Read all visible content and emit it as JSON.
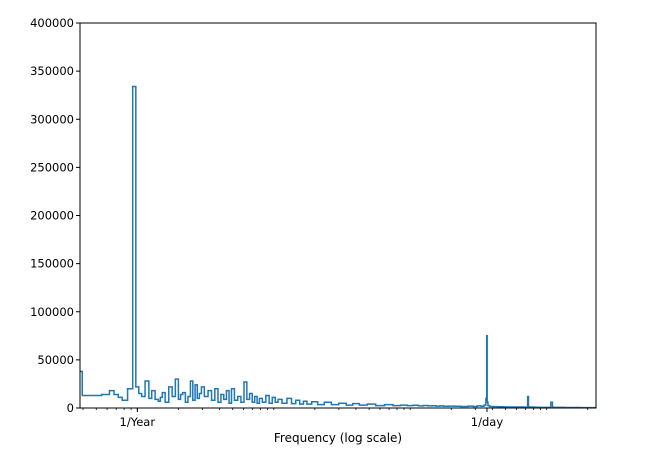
{
  "chart_data": {
    "type": "line",
    "title": "",
    "xlabel": "Frequency (log scale)",
    "ylabel": "",
    "x_scale": "log",
    "x_unit": "cycles per year",
    "xlim": [
      0.38,
      2300
    ],
    "ylim": [
      0,
      400000
    ],
    "grid": false,
    "legend": "none",
    "drawstyle": "steps-mid",
    "line_color": "#1f77b4",
    "y_ticks": [
      {
        "value": 0,
        "label": "0"
      },
      {
        "value": 50000,
        "label": "50000"
      },
      {
        "value": 100000,
        "label": "100000"
      },
      {
        "value": 150000,
        "label": "150000"
      },
      {
        "value": 200000,
        "label": "200000"
      },
      {
        "value": 250000,
        "label": "250000"
      },
      {
        "value": 300000,
        "label": "300000"
      },
      {
        "value": 350000,
        "label": "350000"
      },
      {
        "value": 400000,
        "label": "400000"
      }
    ],
    "x_ticks": [
      {
        "value": 1,
        "label": "1/Year"
      },
      {
        "value": 365.2524,
        "label": "1/day"
      }
    ],
    "series": [
      {
        "x": [
          0.38,
          0.41,
          0.5,
          0.6,
          0.65,
          0.7,
          0.75,
          0.8,
          0.9,
          0.95,
          1.0,
          1.05,
          1.1,
          1.18,
          1.25,
          1.3,
          1.4,
          1.45,
          1.5,
          1.55,
          1.65,
          1.75,
          1.85,
          1.95,
          2.05,
          2.1,
          2.2,
          2.3,
          2.4,
          2.5,
          2.6,
          2.7,
          2.8,
          2.9,
          3.0,
          3.2,
          3.4,
          3.6,
          3.8,
          4.0,
          4.2,
          4.4,
          4.6,
          4.8,
          5.0,
          5.3,
          5.6,
          5.9,
          6.2,
          6.5,
          6.8,
          7.1,
          7.4,
          7.7,
          8.0,
          8.5,
          9.0,
          9.5,
          10,
          10.5,
          11,
          12,
          13,
          14,
          15,
          16,
          17,
          18,
          20,
          22,
          25,
          28,
          32,
          36,
          40,
          45,
          52,
          60,
          70,
          80,
          90,
          100,
          110,
          120,
          130,
          140,
          150,
          160,
          170,
          180,
          200,
          220,
          250,
          280,
          300,
          320,
          340,
          355,
          362,
          365.2524,
          368,
          375,
          390,
          420,
          460,
          500,
          540,
          580,
          620,
          680,
          720,
          731,
          740,
          760,
          800,
          860,
          920,
          1000,
          1050,
          1096,
          1110,
          1150,
          1200,
          1300,
          1400,
          1500,
          1600,
          1700,
          1800,
          1900,
          2000,
          2100,
          2200,
          2300
        ],
        "y": [
          38000,
          13000,
          13000,
          14000,
          18000,
          14000,
          11000,
          8000,
          20000,
          334000,
          22000,
          15000,
          12000,
          28000,
          10000,
          18000,
          9000,
          7000,
          11000,
          16000,
          6000,
          22000,
          12000,
          30000,
          9000,
          14000,
          16000,
          6000,
          12000,
          28000,
          8000,
          24000,
          10000,
          15000,
          22000,
          12000,
          18000,
          8000,
          20000,
          6000,
          14000,
          9000,
          18000,
          5000,
          20000,
          8000,
          12000,
          6000,
          27000,
          9000,
          15000,
          6000,
          12000,
          5000,
          10000,
          6000,
          13000,
          5000,
          11000,
          6000,
          9000,
          5000,
          10000,
          4500,
          8000,
          4000,
          7000,
          4000,
          6500,
          3500,
          6000,
          3500,
          5000,
          3000,
          4500,
          3000,
          4000,
          2500,
          3500,
          2500,
          3000,
          2500,
          2800,
          2200,
          2600,
          2200,
          2400,
          2000,
          2200,
          1800,
          2000,
          1800,
          1600,
          2000,
          1600,
          2200,
          1800,
          3000,
          10000,
          75000,
          6000,
          2500,
          1600,
          1400,
          1300,
          1200,
          1100,
          1100,
          1000,
          1000,
          900,
          12000,
          1200,
          1000,
          900,
          800,
          700,
          700,
          700,
          6000,
          800,
          700,
          600,
          600,
          500,
          500,
          500,
          500,
          400,
          400,
          400,
          400,
          400,
          400
        ]
      }
    ]
  }
}
